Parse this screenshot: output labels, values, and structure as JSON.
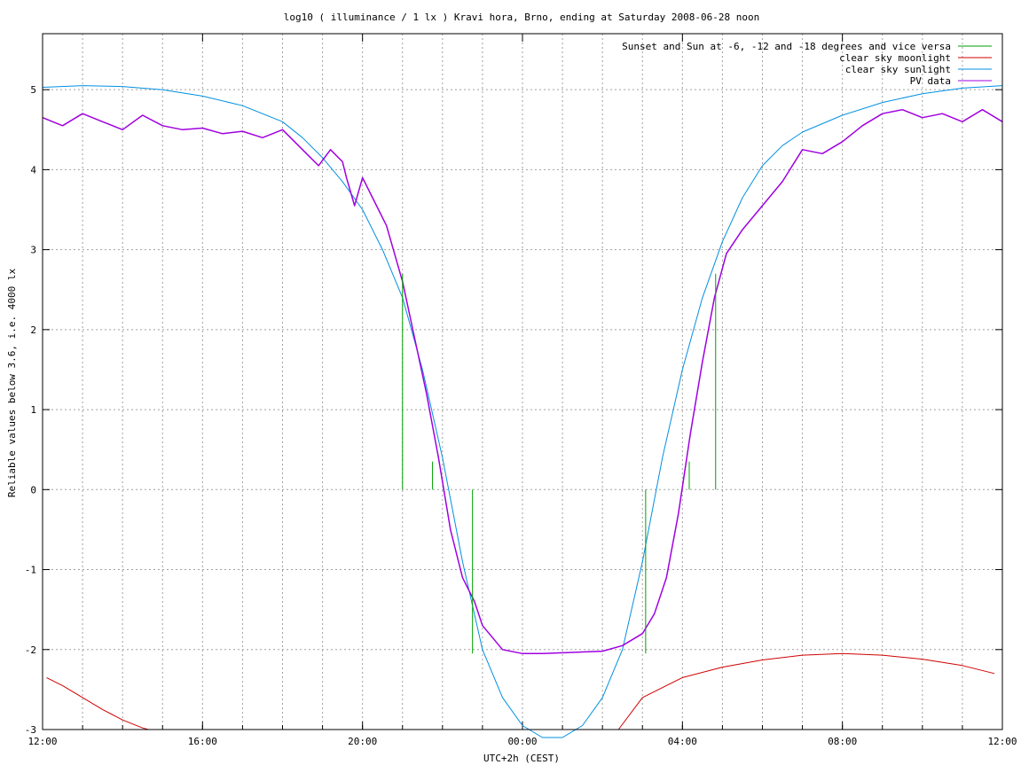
{
  "chart_data": {
    "type": "line",
    "title": "log10 ( illuminance / 1 lx ) Kravi hora, Brno, ending at Saturday 2008-06-28 noon",
    "xlabel": "UTC+2h (CEST)",
    "ylabel": "Reliable values below 3.6, i.e. 4000 lx",
    "x_unit": "hours since 12:00 (Friday)",
    "xlim": [
      0,
      24
    ],
    "ylim": [
      -3,
      5.7
    ],
    "x_ticks": [
      {
        "value": 0,
        "label": "12:00"
      },
      {
        "value": 4,
        "label": "16:00"
      },
      {
        "value": 8,
        "label": "20:00"
      },
      {
        "value": 12,
        "label": "00:00"
      },
      {
        "value": 16,
        "label": "04:00"
      },
      {
        "value": 20,
        "label": "08:00"
      },
      {
        "value": 24,
        "label": "12:00"
      }
    ],
    "y_ticks": [
      {
        "value": -3,
        "label": "-3"
      },
      {
        "value": -2,
        "label": "-2"
      },
      {
        "value": -1,
        "label": "-1"
      },
      {
        "value": 0,
        "label": "0"
      },
      {
        "value": 1,
        "label": "1"
      },
      {
        "value": 2,
        "label": "2"
      },
      {
        "value": 3,
        "label": "3"
      },
      {
        "value": 4,
        "label": "4"
      },
      {
        "value": 5,
        "label": "5"
      }
    ],
    "grid": true,
    "legend_position": "top-right",
    "series": [
      {
        "name": "Sunset and Sun at -6, -12 and -18 degrees and vice versa",
        "color": "#00a000",
        "kind": "vertical-markers",
        "markers": [
          {
            "x": 9.0,
            "y0": 0,
            "y1": 2.7
          },
          {
            "x": 9.75,
            "y0": 0,
            "y1": 0.35
          },
          {
            "x": 10.75,
            "y0": 0,
            "y1": -2.05
          },
          {
            "x": 15.08,
            "y0": 0,
            "y1": -2.05
          },
          {
            "x": 16.17,
            "y0": 0,
            "y1": 0.35
          },
          {
            "x": 16.83,
            "y0": 0,
            "y1": 2.7
          }
        ]
      },
      {
        "name": "clear sky moonlight",
        "color": "#d00000",
        "x": [
          0.1,
          0.5,
          1.0,
          1.5,
          2.0,
          2.5,
          2.65
        ],
        "y": [
          -2.35,
          -2.45,
          -2.6,
          -2.75,
          -2.88,
          -2.98,
          -3.0
        ]
      },
      {
        "name": "clear sky moonlight",
        "color": "#d00000",
        "x": [
          14.4,
          15.0,
          16.0,
          17.0,
          18.0,
          19.0,
          20.0,
          21.0,
          22.0,
          23.0,
          23.8
        ],
        "y": [
          -3.0,
          -2.6,
          -2.35,
          -2.22,
          -2.13,
          -2.07,
          -2.05,
          -2.07,
          -2.12,
          -2.2,
          -2.3
        ]
      },
      {
        "name": "clear sky sunlight",
        "color": "#0090e0",
        "x": [
          0,
          1,
          2,
          3,
          4,
          5,
          6,
          6.5,
          7,
          7.5,
          8,
          8.5,
          9,
          9.5,
          10,
          10.5,
          11,
          11.5,
          12,
          12.5,
          13,
          13.5,
          14,
          14.5,
          15,
          15.5,
          16,
          16.5,
          17,
          17.5,
          18,
          18.5,
          19,
          20,
          21,
          22,
          23,
          24
        ],
        "y": [
          5.03,
          5.05,
          5.04,
          5.0,
          4.92,
          4.8,
          4.6,
          4.4,
          4.15,
          3.85,
          3.5,
          3.0,
          2.4,
          1.5,
          0.4,
          -0.9,
          -2.0,
          -2.6,
          -2.95,
          -3.1,
          -3.1,
          -2.95,
          -2.6,
          -2.0,
          -0.9,
          0.4,
          1.5,
          2.4,
          3.1,
          3.65,
          4.05,
          4.3,
          4.47,
          4.68,
          4.84,
          4.95,
          5.02,
          5.05
        ]
      },
      {
        "name": "PV data",
        "color": "#a000e0",
        "x": [
          0,
          0.5,
          1,
          1.5,
          2,
          2.5,
          3,
          3.5,
          4,
          4.5,
          5,
          5.5,
          6,
          6.3,
          6.6,
          6.9,
          7.2,
          7.5,
          7.6,
          7.8,
          8.0,
          8.3,
          8.6,
          9.0,
          9.3,
          9.6,
          9.9,
          10.2,
          10.5,
          10.8,
          11.0,
          11.5,
          12.0,
          12.5,
          13.0,
          13.5,
          14.0,
          14.5,
          15.0,
          15.3,
          15.6,
          15.9,
          16.2,
          16.5,
          16.8,
          17.1,
          17.5,
          18.0,
          18.5,
          19.0,
          19.5,
          20.0,
          20.5,
          21.0,
          21.5,
          22.0,
          22.5,
          23.0,
          23.5,
          24.0
        ],
        "y": [
          4.65,
          4.55,
          4.7,
          4.6,
          4.5,
          4.68,
          4.55,
          4.5,
          4.52,
          4.45,
          4.48,
          4.4,
          4.5,
          4.35,
          4.2,
          4.05,
          4.25,
          4.1,
          3.9,
          3.55,
          3.9,
          3.6,
          3.3,
          2.6,
          1.9,
          1.2,
          0.4,
          -0.5,
          -1.1,
          -1.4,
          -1.7,
          -2.0,
          -2.05,
          -2.05,
          -2.04,
          -2.03,
          -2.02,
          -1.95,
          -1.8,
          -1.55,
          -1.1,
          -0.3,
          0.7,
          1.6,
          2.4,
          2.95,
          3.25,
          3.55,
          3.85,
          4.25,
          4.2,
          4.35,
          4.55,
          4.7,
          4.75,
          4.65,
          4.7,
          4.6,
          4.75,
          4.6
        ]
      }
    ]
  }
}
